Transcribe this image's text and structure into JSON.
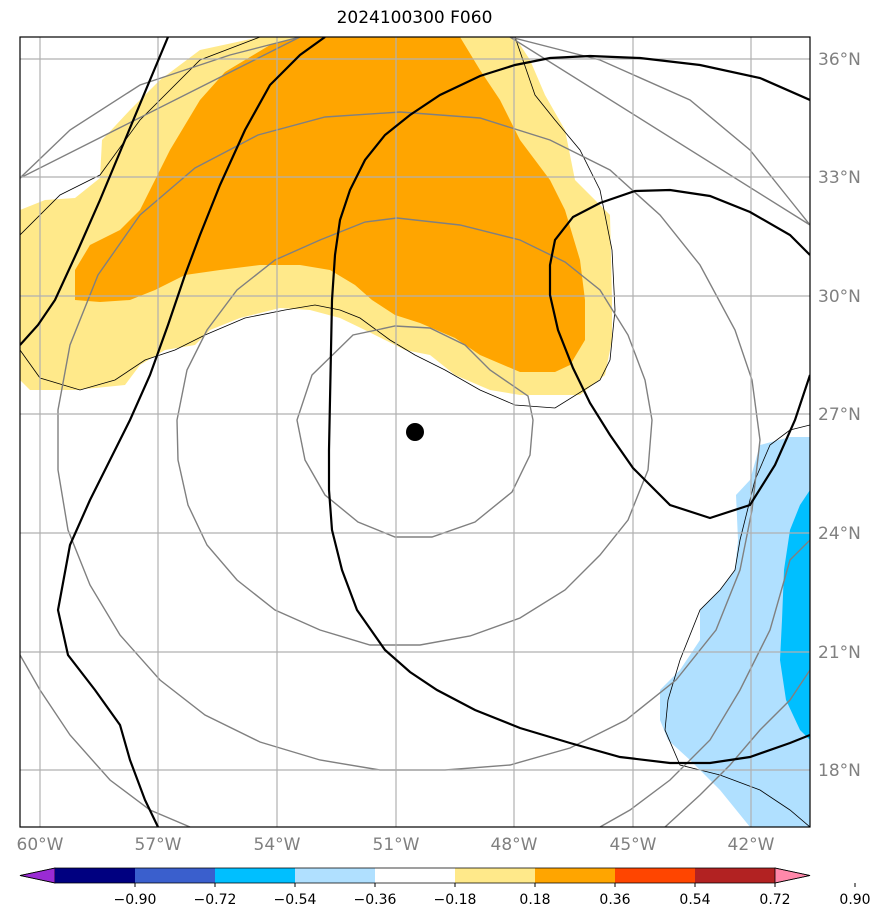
{
  "title": "2024100300 F060",
  "map": {
    "lon_ticks": [
      "60°W",
      "57°W",
      "54°W",
      "51°W",
      "48°W",
      "45°W",
      "42°W"
    ],
    "lat_ticks": [
      "36°N",
      "33°N",
      "30°N",
      "27°N",
      "24°N",
      "21°N",
      "18°N"
    ],
    "storm_center": {
      "lon": -50.6,
      "lat": 26.5
    },
    "extent": {
      "lon_min": -60.5,
      "lon_max": -40.5,
      "lat_min": 16.5,
      "lat_max": 36.5
    }
  },
  "colorbar": {
    "levels": [
      "−0.90",
      "−0.72",
      "−0.54",
      "−0.36",
      "−0.18",
      "0.18",
      "0.36",
      "0.54",
      "0.72",
      "0.90"
    ],
    "colors": [
      "#9a2bd4",
      "#000080",
      "#3a5fcd",
      "#00bfff",
      "#b0e0ff",
      "#ffffff",
      "#ffe98a",
      "#ffa500",
      "#ff4500",
      "#b22222",
      "#ff88aa"
    ]
  }
}
